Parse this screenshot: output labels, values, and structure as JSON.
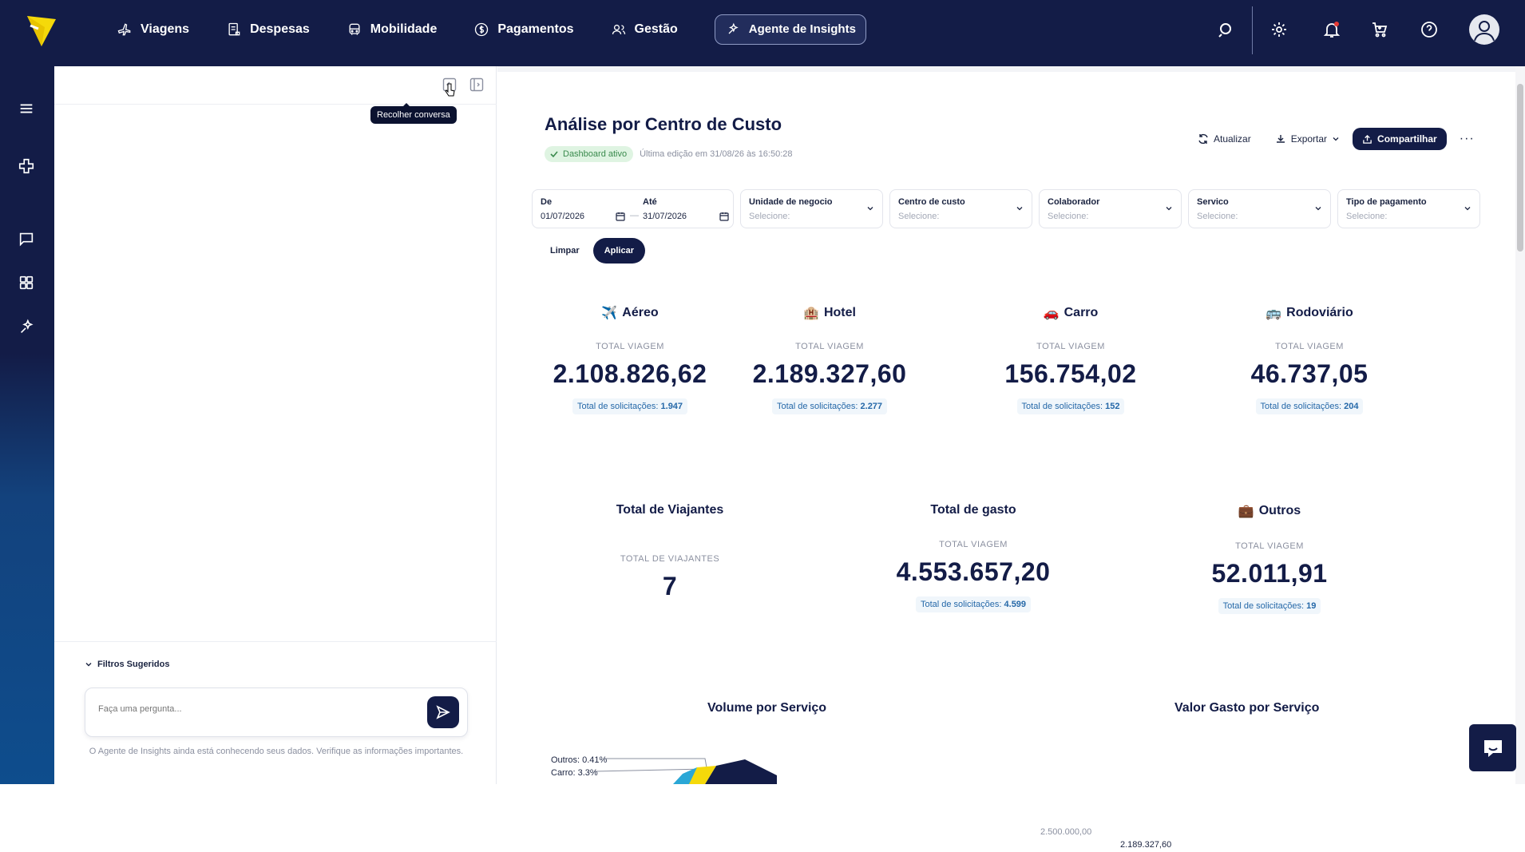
{
  "nav": {
    "items": [
      {
        "label": "Viagens",
        "icon": "plane-icon"
      },
      {
        "label": "Despesas",
        "icon": "receipt-icon"
      },
      {
        "label": "Mobilidade",
        "icon": "car-icon"
      },
      {
        "label": "Pagamentos",
        "icon": "dollar-icon"
      },
      {
        "label": "Gestão",
        "icon": "users-icon"
      }
    ],
    "active_label": "Agente de Insights"
  },
  "chat": {
    "tooltip": "Recolher conversa",
    "suggested_filters": "Filtros Sugeridos",
    "input_placeholder": "Faça uma pergunta...",
    "disclaimer": "O Agente de Insights ainda está conhecendo seus dados. Verifique as informações importantes."
  },
  "dashboard": {
    "title": "Análise por Centro de Custo",
    "status_badge": "Dashboard ativo",
    "last_edit": "Última edição em 31/08/26 às 16:50:28",
    "actions": {
      "refresh": "Atualizar",
      "export": "Exportar",
      "share": "Compartilhar",
      "more": "···"
    }
  },
  "filters": {
    "from_label": "De",
    "from_value": "01/07/2026",
    "to_label": "Até",
    "to_value": "31/07/2026",
    "dash": "—",
    "dropdowns": [
      {
        "label": "Unidade de negocio",
        "value": "Selecione:"
      },
      {
        "label": "Centro de custo",
        "value": "Selecione:"
      },
      {
        "label": "Colaborador",
        "value": "Selecione:"
      },
      {
        "label": "Servico",
        "value": "Selecione:"
      },
      {
        "label": "Tipo de pagamento",
        "value": "Selecione:"
      }
    ],
    "clear": "Limpar",
    "apply": "Aplicar"
  },
  "kpis_row1": [
    {
      "emoji": "✈️",
      "title": "Aéreo",
      "sub": "TOTAL VIAGEM",
      "value": "2.108.826,62",
      "req_label": "Total de solicitações:",
      "req_value": "1.947"
    },
    {
      "emoji": "🏨",
      "title": "Hotel",
      "sub": "TOTAL VIAGEM",
      "value": "2.189.327,60",
      "req_label": "Total de solicitações:",
      "req_value": "2.277"
    },
    {
      "emoji": "🚗",
      "title": "Carro",
      "sub": "TOTAL VIAGEM",
      "value": "156.754,02",
      "req_label": "Total de solicitações:",
      "req_value": "152"
    },
    {
      "emoji": "🚌",
      "title": "Rodoviário",
      "sub": "TOTAL VIAGEM",
      "value": "46.737,05",
      "req_label": "Total de solicitações:",
      "req_value": "204"
    }
  ],
  "kpis_row2": [
    {
      "emoji": "",
      "title": "Total de Viajantes",
      "sub": "TOTAL DE VIAJANTES",
      "value": "7",
      "req_label": "",
      "req_value": ""
    },
    {
      "emoji": "",
      "title": "Total de gasto",
      "sub": "TOTAL VIAGEM",
      "value": "4.553.657,20",
      "req_label": "Total de solicitações:",
      "req_value": "4.599"
    },
    {
      "emoji": "💼",
      "title": "Outros",
      "sub": "TOTAL VIAGEM",
      "value": "52.011,91",
      "req_label": "Total de solicitações:",
      "req_value": "19"
    }
  ],
  "charts": {
    "volume_title": "Volume por Serviço",
    "spend_title": "Valor Gasto por Serviço",
    "pie_labels": [
      "Outros: 0.41%",
      "Carro: 3.3%"
    ],
    "spend_axis_top": "2.500.000,00",
    "spend_bar_label": "2.189.327,60"
  },
  "chart_data": {
    "type": "pie",
    "title": "Volume por Serviço",
    "categories": [
      "Outros",
      "Carro"
    ],
    "values": [
      0.41,
      3.3
    ]
  },
  "colors": {
    "navy": "#131c47",
    "accent_yellow": "#f5d90a",
    "success": "#3a8a4d",
    "link_blue": "#2568a8"
  }
}
